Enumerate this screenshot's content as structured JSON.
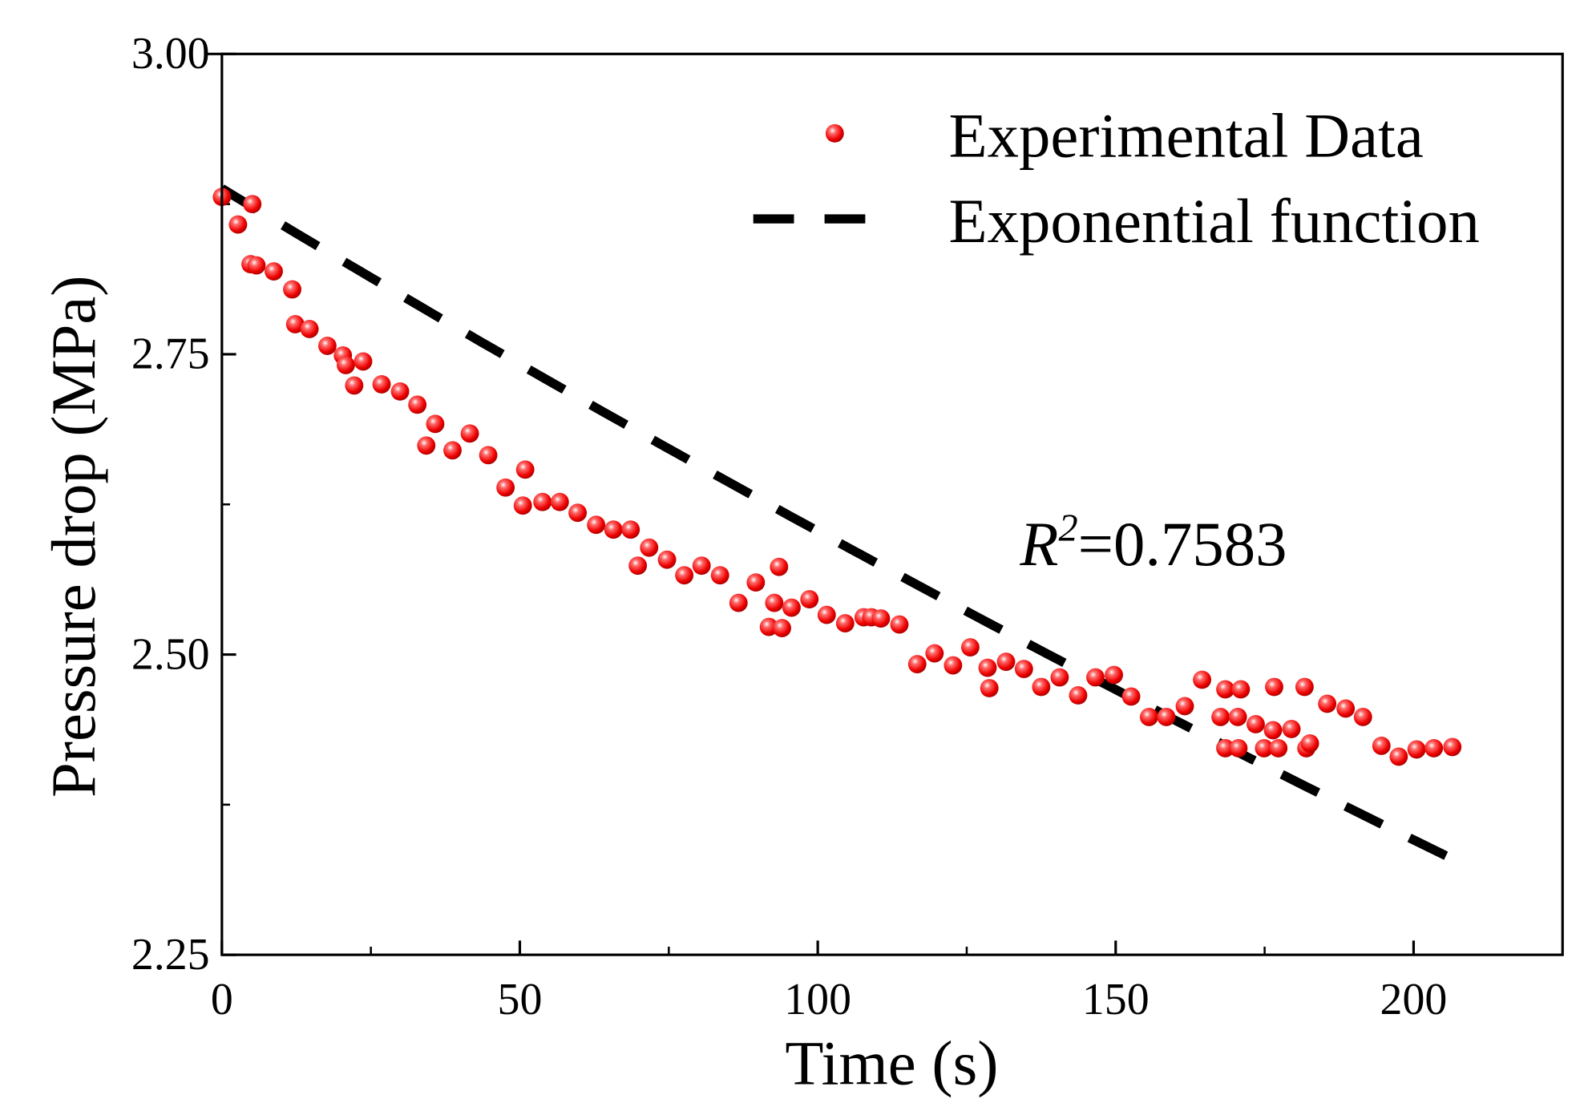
{
  "chart_data": {
    "type": "scatter",
    "xlabel": "Time (s)",
    "ylabel": "Pressure drop (MPa)",
    "xlim": [
      0,
      225
    ],
    "ylim": [
      2.25,
      3.0
    ],
    "xticks": [
      0,
      50,
      100,
      150,
      200
    ],
    "xtick_labels": [
      "0",
      "50",
      "100",
      "150",
      "200"
    ],
    "yticks": [
      2.25,
      2.5,
      2.75,
      3.0
    ],
    "ytick_labels": [
      "2.25",
      "2.50",
      "2.75",
      "3.00"
    ],
    "grid": false,
    "legend_position": "top-right",
    "annotation": {
      "prefix": "R",
      "superscript": "2",
      "text": "=0.7583"
    },
    "series": [
      {
        "name": "Experimental Data",
        "kind": "scatter",
        "color": "#ff0000",
        "points": [
          [
            0,
            2.881
          ],
          [
            2.7,
            2.858
          ],
          [
            5.1,
            2.875
          ],
          [
            4.8,
            2.825
          ],
          [
            5.8,
            2.824
          ],
          [
            8.7,
            2.819
          ],
          [
            11.8,
            2.804
          ],
          [
            12.3,
            2.775
          ],
          [
            14.7,
            2.771
          ],
          [
            17.7,
            2.757
          ],
          [
            20.3,
            2.749
          ],
          [
            20.8,
            2.741
          ],
          [
            23.7,
            2.744
          ],
          [
            22.2,
            2.724
          ],
          [
            26.8,
            2.725
          ],
          [
            29.9,
            2.719
          ],
          [
            32.8,
            2.708
          ],
          [
            34.3,
            2.674
          ],
          [
            35.8,
            2.692
          ],
          [
            38.7,
            2.67
          ],
          [
            41.6,
            2.684
          ],
          [
            44.7,
            2.666
          ],
          [
            47.6,
            2.639
          ],
          [
            50.5,
            2.624
          ],
          [
            50.9,
            2.654
          ],
          [
            53.8,
            2.627
          ],
          [
            56.7,
            2.627
          ],
          [
            59.7,
            2.618
          ],
          [
            62.8,
            2.608
          ],
          [
            65.7,
            2.604
          ],
          [
            68.6,
            2.604
          ],
          [
            69.8,
            2.574
          ],
          [
            71.7,
            2.589
          ],
          [
            74.7,
            2.579
          ],
          [
            77.6,
            2.566
          ],
          [
            80.5,
            2.574
          ],
          [
            83.6,
            2.566
          ],
          [
            86.7,
            2.543
          ],
          [
            89.6,
            2.56
          ],
          [
            91.8,
            2.523
          ],
          [
            92.7,
            2.543
          ],
          [
            93.5,
            2.573
          ],
          [
            94.0,
            2.522
          ],
          [
            95.6,
            2.539
          ],
          [
            98.6,
            2.546
          ],
          [
            101.5,
            2.533
          ],
          [
            104.6,
            2.526
          ],
          [
            107.7,
            2.531
          ],
          [
            109.0,
            2.531
          ],
          [
            110.6,
            2.53
          ],
          [
            113.7,
            2.525
          ],
          [
            116.7,
            2.492
          ],
          [
            119.6,
            2.501
          ],
          [
            122.7,
            2.491
          ],
          [
            125.6,
            2.506
          ],
          [
            128.5,
            2.489
          ],
          [
            128.8,
            2.472
          ],
          [
            131.6,
            2.494
          ],
          [
            134.6,
            2.488
          ],
          [
            137.5,
            2.473
          ],
          [
            140.6,
            2.481
          ],
          [
            143.7,
            2.466
          ],
          [
            146.6,
            2.481
          ],
          [
            149.7,
            2.483
          ],
          [
            152.6,
            2.465
          ],
          [
            155.6,
            2.448
          ],
          [
            158.5,
            2.448
          ],
          [
            161.6,
            2.457
          ],
          [
            164.5,
            2.479
          ],
          [
            167.6,
            2.448
          ],
          [
            168.4,
            2.471
          ],
          [
            168.4,
            2.422
          ],
          [
            170.5,
            2.448
          ],
          [
            171.0,
            2.471
          ],
          [
            170.6,
            2.422
          ],
          [
            173.5,
            2.442
          ],
          [
            174.9,
            2.422
          ],
          [
            176.4,
            2.437
          ],
          [
            176.6,
            2.473
          ],
          [
            177.3,
            2.422
          ],
          [
            179.5,
            2.438
          ],
          [
            181.7,
            2.473
          ],
          [
            182.0,
            2.422
          ],
          [
            182.6,
            2.426
          ],
          [
            185.5,
            2.459
          ],
          [
            188.6,
            2.455
          ],
          [
            191.5,
            2.448
          ],
          [
            194.6,
            2.424
          ],
          [
            197.5,
            2.415
          ],
          [
            200.5,
            2.421
          ],
          [
            203.4,
            2.422
          ],
          [
            206.5,
            2.423
          ]
        ]
      },
      {
        "name": "Exponential function",
        "kind": "line",
        "style": "dashed",
        "color": "#000000",
        "function": {
          "a": 2.888,
          "b": 0.00104,
          "x_range": [
            0,
            206.8
          ]
        }
      }
    ]
  }
}
